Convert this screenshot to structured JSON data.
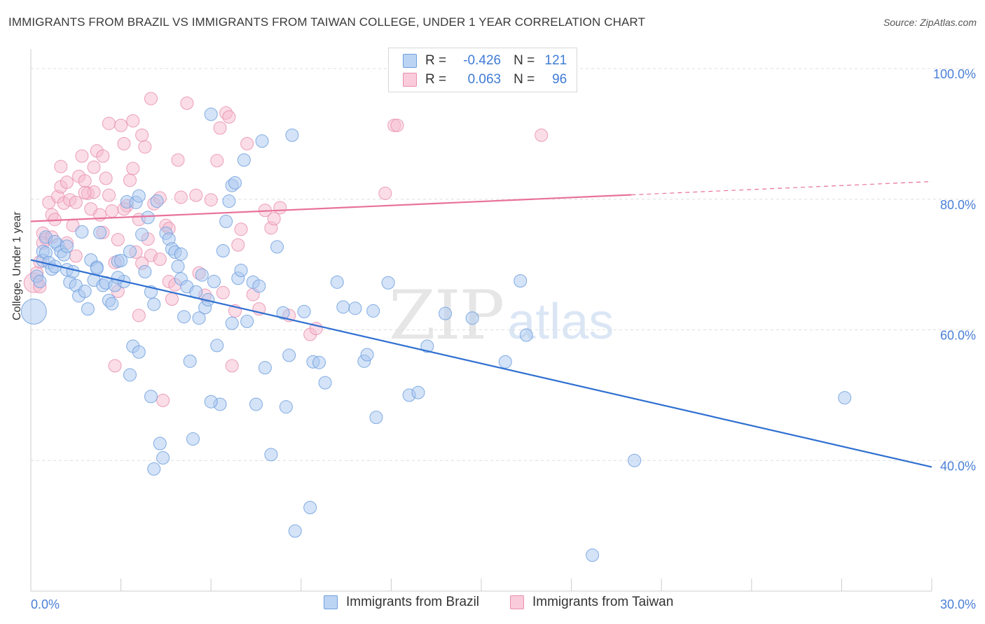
{
  "title": "IMMIGRANTS FROM BRAZIL VS IMMIGRANTS FROM TAIWAN COLLEGE, UNDER 1 YEAR CORRELATION CHART",
  "source": "Source: ZipAtlas.com",
  "watermark": {
    "zip": "ZIP",
    "atlas": "atlas"
  },
  "legend": {
    "rows": [
      {
        "r_label": "R =",
        "r_value": "-0.426",
        "n_label": "N =",
        "n_value": "121"
      },
      {
        "r_label": "R =",
        "r_value": "0.063",
        "n_label": "N =",
        "n_value": "96"
      }
    ]
  },
  "colors": {
    "brazil_fill": "#a9c8ef",
    "brazil_stroke": "#6f9fde",
    "brazil_line": "#2f6fd1",
    "taiwan_fill": "#f6bcd0",
    "taiwan_stroke": "#e98fae",
    "taiwan_line": "#e8719b",
    "axis_text": "#4a7fd6",
    "grid": "#dddddd"
  },
  "chart_data": {
    "type": "scatter",
    "title": "IMMIGRANTS FROM BRAZIL VS IMMIGRANTS FROM TAIWAN COLLEGE, UNDER 1 YEAR CORRELATION CHART",
    "xlabel": "",
    "ylabel": "College, Under 1 year",
    "xlim": [
      0,
      30
    ],
    "ylim": [
      20,
      103
    ],
    "x_tick_labels": [
      "0.0%",
      "30.0%"
    ],
    "y_ticks": [
      40,
      60,
      80,
      100
    ],
    "y_tick_labels": [
      "40.0%",
      "60.0%",
      "80.0%",
      "100.0%"
    ],
    "grid": true,
    "legend_position": "top-center",
    "series": [
      {
        "name": "Immigrants from Brazil",
        "r": -0.426,
        "n": 121,
        "trend": {
          "x": [
            0,
            30
          ],
          "y": [
            70.7,
            39.0
          ],
          "dashed_from": null
        },
        "points": [
          [
            0.1,
            62.8
          ],
          [
            0.2,
            68.2
          ],
          [
            0.3,
            67.4
          ],
          [
            0.4,
            72.0
          ],
          [
            0.4,
            70.6
          ],
          [
            0.5,
            71.8
          ],
          [
            0.5,
            74.2
          ],
          [
            0.6,
            70.3
          ],
          [
            0.7,
            69.3
          ],
          [
            0.8,
            69.7
          ],
          [
            0.9,
            73.0
          ],
          [
            1.0,
            72.0
          ],
          [
            1.1,
            71.5
          ],
          [
            1.2,
            69.2
          ],
          [
            1.3,
            67.3
          ],
          [
            1.4,
            68.9
          ],
          [
            1.5,
            66.8
          ],
          [
            1.6,
            65.2
          ],
          [
            1.7,
            75.0
          ],
          [
            1.8,
            65.9
          ],
          [
            1.9,
            63.2
          ],
          [
            2.0,
            70.7
          ],
          [
            2.1,
            67.6
          ],
          [
            2.2,
            69.6
          ],
          [
            2.3,
            74.9
          ],
          [
            2.4,
            66.8
          ],
          [
            2.5,
            67.2
          ],
          [
            2.6,
            64.5
          ],
          [
            2.7,
            64.0
          ],
          [
            2.8,
            66.8
          ],
          [
            2.9,
            70.5
          ],
          [
            3.0,
            70.6
          ],
          [
            3.1,
            67.4
          ],
          [
            3.2,
            79.6
          ],
          [
            3.3,
            72.0
          ],
          [
            3.4,
            57.5
          ],
          [
            3.5,
            79.5
          ],
          [
            3.6,
            80.5
          ],
          [
            3.7,
            74.6
          ],
          [
            3.8,
            68.9
          ],
          [
            3.9,
            77.2
          ],
          [
            4.0,
            65.8
          ],
          [
            4.1,
            63.9
          ],
          [
            4.2,
            79.7
          ],
          [
            4.3,
            42.6
          ],
          [
            4.4,
            40.4
          ],
          [
            4.5,
            74.8
          ],
          [
            4.6,
            73.9
          ],
          [
            4.7,
            72.4
          ],
          [
            4.8,
            71.9
          ],
          [
            4.9,
            69.7
          ],
          [
            5.0,
            67.8
          ],
          [
            5.1,
            62.0
          ],
          [
            5.2,
            66.6
          ],
          [
            5.3,
            55.2
          ],
          [
            5.4,
            43.3
          ],
          [
            5.5,
            65.8
          ],
          [
            5.6,
            61.8
          ],
          [
            5.7,
            68.4
          ],
          [
            5.8,
            63.4
          ],
          [
            5.9,
            64.6
          ],
          [
            6.0,
            93.0
          ],
          [
            6.1,
            67.4
          ],
          [
            6.2,
            57.6
          ],
          [
            6.3,
            48.6
          ],
          [
            6.4,
            72.1
          ],
          [
            6.5,
            76.6
          ],
          [
            6.6,
            79.7
          ],
          [
            6.7,
            82.1
          ],
          [
            6.8,
            82.5
          ],
          [
            6.9,
            67.9
          ],
          [
            7.0,
            69.1
          ],
          [
            7.1,
            86.0
          ],
          [
            7.2,
            61.3
          ],
          [
            7.4,
            67.3
          ],
          [
            7.5,
            48.6
          ],
          [
            7.6,
            66.7
          ],
          [
            7.7,
            88.9
          ],
          [
            7.8,
            54.2
          ],
          [
            8.0,
            40.9
          ],
          [
            8.2,
            72.7
          ],
          [
            8.4,
            62.6
          ],
          [
            8.5,
            48.2
          ],
          [
            8.6,
            56.1
          ],
          [
            8.7,
            89.8
          ],
          [
            8.8,
            29.2
          ],
          [
            9.1,
            62.8
          ],
          [
            9.3,
            32.8
          ],
          [
            9.4,
            55.1
          ],
          [
            9.6,
            55.0
          ],
          [
            9.8,
            51.9
          ],
          [
            10.2,
            67.3
          ],
          [
            10.4,
            63.5
          ],
          [
            10.8,
            63.3
          ],
          [
            11.1,
            55.2
          ],
          [
            11.2,
            56.2
          ],
          [
            11.4,
            62.9
          ],
          [
            11.5,
            46.6
          ],
          [
            11.9,
            67.2
          ],
          [
            12.6,
            50.0
          ],
          [
            12.9,
            50.4
          ],
          [
            13.2,
            57.5
          ],
          [
            13.8,
            62.5
          ],
          [
            14.7,
            61.8
          ],
          [
            15.8,
            55.1
          ],
          [
            16.3,
            67.5
          ],
          [
            16.5,
            59.2
          ],
          [
            18.7,
            25.5
          ],
          [
            20.1,
            40.0
          ],
          [
            27.1,
            49.6
          ],
          [
            3.3,
            53.1
          ],
          [
            3.6,
            56.6
          ],
          [
            4.0,
            49.8
          ],
          [
            4.1,
            38.7
          ],
          [
            6.0,
            49.0
          ],
          [
            2.2,
            69.4
          ],
          [
            0.8,
            73.5
          ],
          [
            1.2,
            72.8
          ],
          [
            2.9,
            68.0
          ],
          [
            5.0,
            71.6
          ],
          [
            6.7,
            61.0
          ]
        ]
      },
      {
        "name": "Immigrants from Taiwan",
        "r": 0.063,
        "n": 96,
        "trend": {
          "x": [
            0,
            30
          ],
          "y": [
            76.6,
            82.7
          ],
          "dashed_from": 20.0
        },
        "points": [
          [
            0.1,
            67.2
          ],
          [
            0.2,
            68.7
          ],
          [
            0.3,
            70.4
          ],
          [
            0.3,
            66.6
          ],
          [
            0.4,
            74.8
          ],
          [
            0.5,
            73.9
          ],
          [
            0.6,
            79.5
          ],
          [
            0.7,
            77.6
          ],
          [
            0.8,
            76.9
          ],
          [
            0.9,
            80.4
          ],
          [
            1.0,
            81.9
          ],
          [
            1.0,
            85.0
          ],
          [
            1.1,
            79.4
          ],
          [
            1.2,
            73.3
          ],
          [
            1.3,
            79.9
          ],
          [
            1.4,
            76.0
          ],
          [
            1.5,
            71.3
          ],
          [
            1.6,
            83.5
          ],
          [
            1.7,
            86.6
          ],
          [
            1.8,
            82.8
          ],
          [
            1.9,
            80.9
          ],
          [
            2.0,
            78.5
          ],
          [
            2.1,
            84.9
          ],
          [
            2.2,
            87.4
          ],
          [
            2.3,
            77.6
          ],
          [
            2.4,
            86.6
          ],
          [
            2.5,
            83.2
          ],
          [
            2.6,
            80.6
          ],
          [
            2.7,
            78.2
          ],
          [
            2.8,
            70.3
          ],
          [
            2.9,
            73.8
          ],
          [
            3.0,
            91.3
          ],
          [
            3.1,
            88.5
          ],
          [
            3.2,
            79.0
          ],
          [
            3.3,
            82.9
          ],
          [
            3.4,
            92.0
          ],
          [
            3.5,
            71.9
          ],
          [
            3.6,
            62.2
          ],
          [
            3.7,
            89.8
          ],
          [
            3.8,
            88.0
          ],
          [
            3.9,
            73.9
          ],
          [
            4.0,
            95.4
          ],
          [
            4.1,
            79.3
          ],
          [
            4.3,
            80.2
          ],
          [
            4.4,
            49.2
          ],
          [
            4.5,
            76.0
          ],
          [
            4.6,
            67.4
          ],
          [
            4.7,
            64.7
          ],
          [
            4.8,
            66.9
          ],
          [
            4.9,
            86.0
          ],
          [
            5.0,
            80.3
          ],
          [
            5.2,
            94.7
          ],
          [
            5.5,
            80.6
          ],
          [
            5.8,
            65.3
          ],
          [
            6.0,
            79.9
          ],
          [
            6.2,
            85.9
          ],
          [
            6.3,
            90.9
          ],
          [
            6.4,
            65.7
          ],
          [
            6.5,
            93.2
          ],
          [
            6.6,
            92.6
          ],
          [
            6.7,
            54.5
          ],
          [
            6.8,
            62.9
          ],
          [
            6.9,
            73.0
          ],
          [
            7.0,
            75.4
          ],
          [
            7.2,
            88.5
          ],
          [
            7.4,
            65.4
          ],
          [
            7.6,
            63.2
          ],
          [
            7.8,
            78.3
          ],
          [
            8.0,
            75.6
          ],
          [
            8.1,
            77.0
          ],
          [
            8.3,
            78.7
          ],
          [
            8.6,
            62.2
          ],
          [
            9.3,
            59.3
          ],
          [
            9.5,
            60.2
          ],
          [
            11.8,
            80.9
          ],
          [
            12.1,
            91.3
          ],
          [
            12.2,
            91.3
          ],
          [
            17.0,
            89.8
          ],
          [
            0.4,
            73.3
          ],
          [
            0.7,
            74.2
          ],
          [
            1.2,
            82.6
          ],
          [
            1.5,
            79.5
          ],
          [
            2.1,
            81.1
          ],
          [
            2.4,
            74.9
          ],
          [
            2.9,
            65.9
          ],
          [
            3.1,
            78.5
          ],
          [
            3.6,
            76.9
          ],
          [
            4.0,
            71.4
          ],
          [
            4.3,
            70.8
          ],
          [
            4.6,
            75.5
          ],
          [
            2.8,
            54.5
          ],
          [
            3.7,
            70.2
          ],
          [
            1.8,
            81.0
          ],
          [
            2.6,
            91.6
          ],
          [
            3.4,
            84.7
          ],
          [
            5.6,
            68.7
          ]
        ]
      }
    ]
  },
  "bottom_legend": [
    {
      "label": "Immigrants from Brazil"
    },
    {
      "label": "Immigrants from Taiwan"
    }
  ]
}
